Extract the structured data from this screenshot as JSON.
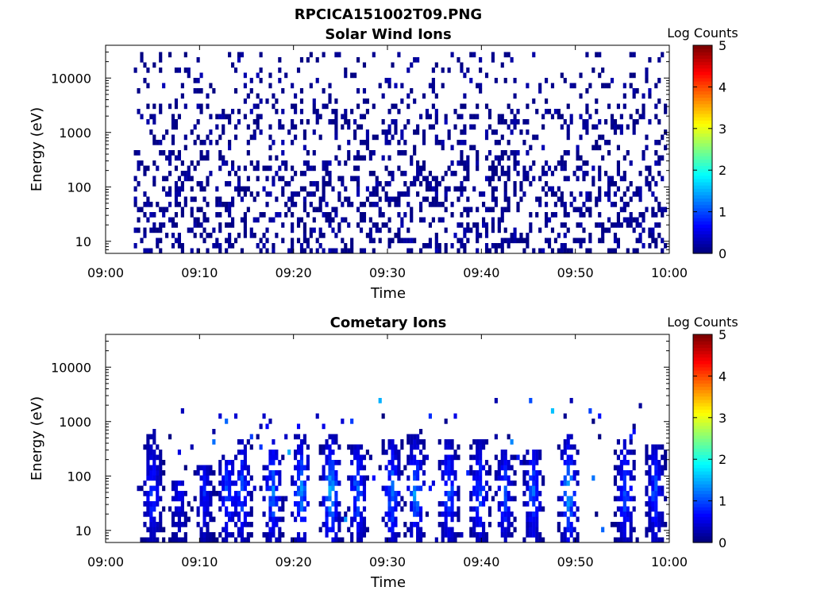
{
  "figure": {
    "filename": "RPCICA151002T09.PNG",
    "colorbar_label": "Log Counts",
    "colormap": "jet"
  },
  "chart_data": [
    {
      "type": "heatmap",
      "title": "Solar Wind Ions",
      "xlabel": "Time",
      "ylabel": "Energy (eV)",
      "x_ticks": [
        "09:00",
        "09:10",
        "09:20",
        "09:30",
        "09:40",
        "09:50",
        "10:00"
      ],
      "x_range": [
        "09:00",
        "10:00"
      ],
      "y_scale": "log",
      "y_ticks": [
        "10",
        "100",
        "1000",
        "10000"
      ],
      "y_range": [
        6,
        40000
      ],
      "color_range": [
        0,
        5
      ],
      "color_ticks": [
        "0",
        "1",
        "2",
        "3",
        "4",
        "5"
      ],
      "data_start_minute": 3,
      "activity_bursts": [],
      "background_fill": 0.35,
      "max_energy_eV": 30000,
      "min_energy_eV": 6,
      "typical_log_counts": [
        0,
        0.3
      ]
    },
    {
      "type": "heatmap",
      "title": "Cometary Ions",
      "xlabel": "Time",
      "ylabel": "Energy (eV)",
      "x_ticks": [
        "09:00",
        "09:10",
        "09:20",
        "09:30",
        "09:40",
        "09:50",
        "10:00"
      ],
      "x_range": [
        "09:00",
        "10:00"
      ],
      "y_scale": "log",
      "y_ticks": [
        "10",
        "100",
        "1000",
        "10000"
      ],
      "y_range": [
        6,
        40000
      ],
      "color_range": [
        0,
        5
      ],
      "color_ticks": [
        "0",
        "1",
        "2",
        "3",
        "4",
        "5"
      ],
      "data_start_minute": 3,
      "activity_bursts": [
        {
          "minute": 5.0,
          "peak_log": 1.2,
          "e_top": 600
        },
        {
          "minute": 7.8,
          "peak_log": 0.8,
          "e_top": 80
        },
        {
          "minute": 10.5,
          "peak_log": 0.9,
          "e_top": 150
        },
        {
          "minute": 13.0,
          "peak_log": 1.3,
          "e_top": 200
        },
        {
          "minute": 14.5,
          "peak_log": 1.4,
          "e_top": 500
        },
        {
          "minute": 17.8,
          "peak_log": 1.6,
          "e_top": 300
        },
        {
          "minute": 20.8,
          "peak_log": 1.8,
          "e_top": 600
        },
        {
          "minute": 24.0,
          "peak_log": 2.0,
          "e_top": 600
        },
        {
          "minute": 26.8,
          "peak_log": 1.5,
          "e_top": 400
        },
        {
          "minute": 30.5,
          "peak_log": 1.6,
          "e_top": 500
        },
        {
          "minute": 33.0,
          "peak_log": 1.7,
          "e_top": 600
        },
        {
          "minute": 36.5,
          "peak_log": 1.5,
          "e_top": 500
        },
        {
          "minute": 39.8,
          "peak_log": 1.4,
          "e_top": 500
        },
        {
          "minute": 42.5,
          "peak_log": 1.3,
          "e_top": 300
        },
        {
          "minute": 45.5,
          "peak_log": 1.4,
          "e_top": 300
        },
        {
          "minute": 49.3,
          "peak_log": 2.0,
          "e_top": 600
        },
        {
          "minute": 55.3,
          "peak_log": 1.4,
          "e_top": 500
        },
        {
          "minute": 58.5,
          "peak_log": 1.3,
          "e_top": 400
        }
      ],
      "background_fill": 0.03,
      "max_energy_eV": 3000,
      "min_energy_eV": 6,
      "typical_log_counts": [
        0,
        2.0
      ]
    }
  ]
}
